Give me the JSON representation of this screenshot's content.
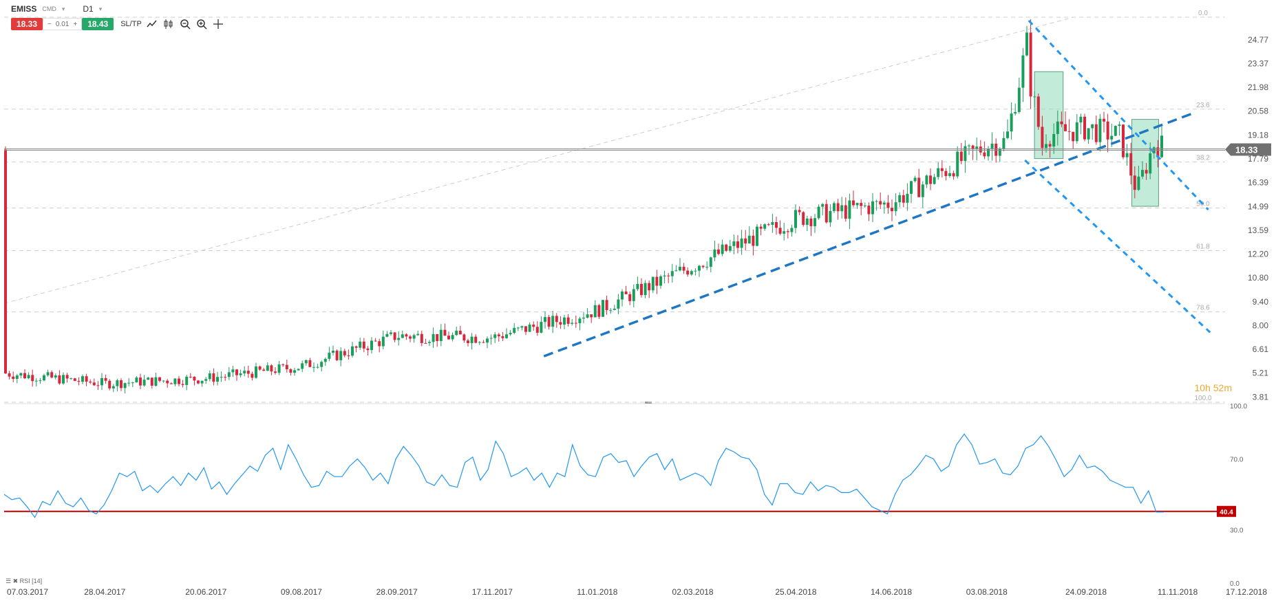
{
  "header": {
    "symbol": "EMISS",
    "symbol_type": "CMD",
    "timeframe": "D1",
    "sell_price": "18.33",
    "spread_minus": "−",
    "spread": "0.01",
    "spread_plus": "+",
    "buy_price": "18.43",
    "sltp_label": "SL/TP"
  },
  "icons": [
    "line-chart-icon",
    "candles-icon",
    "zoom-out-icon",
    "zoom-in-icon",
    "crosshair-icon"
  ],
  "colors": {
    "up": "#1a9e5c",
    "down": "#d6283c",
    "trend": "#1f77c4",
    "channel": "#2196f3",
    "rsi_line": "#2196f3",
    "rsi_level": "#c00000",
    "box_fill": "#8fdcb9",
    "timer": "#f0a830"
  },
  "timer": {
    "hours": "10h",
    "minutes": "52m"
  },
  "price_tag": "18.33",
  "rsi_tag": "40.4",
  "rsi_label": "RSI [14]",
  "chart_data": {
    "type": "candlestick",
    "title": "",
    "price_axis": {
      "ticks": [
        "24.77",
        "23.37",
        "21.98",
        "20.58",
        "19.18",
        "17.79",
        "16.39",
        "14.99",
        "13.59",
        "12.20",
        "10.80",
        "9.40",
        "8.00",
        "6.61",
        "5.21",
        "3.81"
      ],
      "range": [
        3.5,
        26.3
      ]
    },
    "x_axis": {
      "ticks": [
        "07.03.2017",
        "28.04.2017",
        "20.06.2017",
        "09.08.2017",
        "28.09.2017",
        "17.11.2017",
        "11.01.2018",
        "02.03.2018",
        "25.04.2018",
        "14.06.2018",
        "03.08.2018",
        "24.09.2018",
        "11.11.2018",
        "17.12.2018"
      ]
    },
    "fib_levels": [
      {
        "label": "0.0",
        "value": 26.1
      },
      {
        "label": "23.6",
        "value": 20.7
      },
      {
        "label": "38.2",
        "value": 17.6
      },
      {
        "label": "50.0",
        "value": 14.9
      },
      {
        "label": "61.8",
        "value": 12.4
      },
      {
        "label": "78.6",
        "value": 8.8
      },
      {
        "label": "100.0",
        "value": 3.5
      }
    ],
    "current_price": 18.33,
    "close_path": [
      {
        "x": "07.03.2017",
        "y": 5.2
      },
      {
        "x": "28.04.2017",
        "y": 4.6
      },
      {
        "x": "20.06.2017",
        "y": 4.9
      },
      {
        "x": "09.08.2017",
        "y": 5.6
      },
      {
        "x": "28.09.2017",
        "y": 7.4
      },
      {
        "x": "17.11.2017",
        "y": 7.3
      },
      {
        "x": "11.01.2018",
        "y": 8.9
      },
      {
        "x": "02.03.2018",
        "y": 11.5
      },
      {
        "x": "25.04.2018",
        "y": 14.3
      },
      {
        "x": "14.06.2018",
        "y": 15.2
      },
      {
        "x": "03.08.2018",
        "y": 18.6
      },
      {
        "x": "24.09.2018",
        "y": 19.6
      },
      {
        "x": "11.11.2018",
        "y": 18.33
      }
    ],
    "rsi": {
      "period": 14,
      "axis_ticks": [
        "100.0",
        "70.0",
        "30.0",
        "0.0"
      ],
      "level": 40.4,
      "values": [
        50,
        47,
        48,
        43,
        37,
        46,
        44,
        52,
        45,
        43,
        48,
        41,
        39,
        44,
        52,
        62,
        60,
        63,
        52,
        55,
        51,
        56,
        60,
        55,
        62,
        58,
        65,
        53,
        57,
        50,
        56,
        61,
        66,
        63,
        72,
        76,
        64,
        78,
        70,
        61,
        54,
        55,
        63,
        60,
        60,
        66,
        70,
        65,
        58,
        62,
        56,
        70,
        77,
        72,
        66,
        57,
        55,
        61,
        55,
        54,
        68,
        71,
        58,
        64,
        80,
        73,
        60,
        62,
        65,
        58,
        62,
        54,
        62,
        60,
        78,
        66,
        61,
        60,
        71,
        73,
        68,
        69,
        60,
        66,
        71,
        73,
        64,
        70,
        58,
        60,
        62,
        60,
        55,
        69,
        76,
        74,
        71,
        70,
        64,
        50,
        44,
        56,
        56,
        51,
        50,
        57,
        52,
        55,
        54,
        51,
        51,
        53,
        48,
        43,
        41,
        39,
        50,
        58,
        61,
        66,
        72,
        70,
        63,
        66,
        78,
        84,
        78,
        67,
        68,
        70,
        62,
        61,
        66,
        76,
        78,
        83,
        77,
        69,
        60,
        64,
        72,
        65,
        66,
        63,
        58,
        56,
        54,
        54,
        45,
        52,
        40,
        40
      ]
    },
    "series": [
      {
        "name": "",
        "type": "trendline",
        "points": [
          {
            "x": "14.12.2017",
            "y": 6.2
          },
          {
            "x": "20.11.2018",
            "y": 20.5
          }
        ]
      },
      {
        "name": "",
        "type": "channel-upper",
        "points": [
          {
            "x": "25.08.2018",
            "y": 25.9
          },
          {
            "x": "27.11.2018",
            "y": 14.8
          }
        ]
      },
      {
        "name": "",
        "type": "channel-lower",
        "points": [
          {
            "x": "23.08.2018",
            "y": 17.7
          },
          {
            "x": "28.11.2018",
            "y": 7.6
          }
        ]
      }
    ]
  }
}
